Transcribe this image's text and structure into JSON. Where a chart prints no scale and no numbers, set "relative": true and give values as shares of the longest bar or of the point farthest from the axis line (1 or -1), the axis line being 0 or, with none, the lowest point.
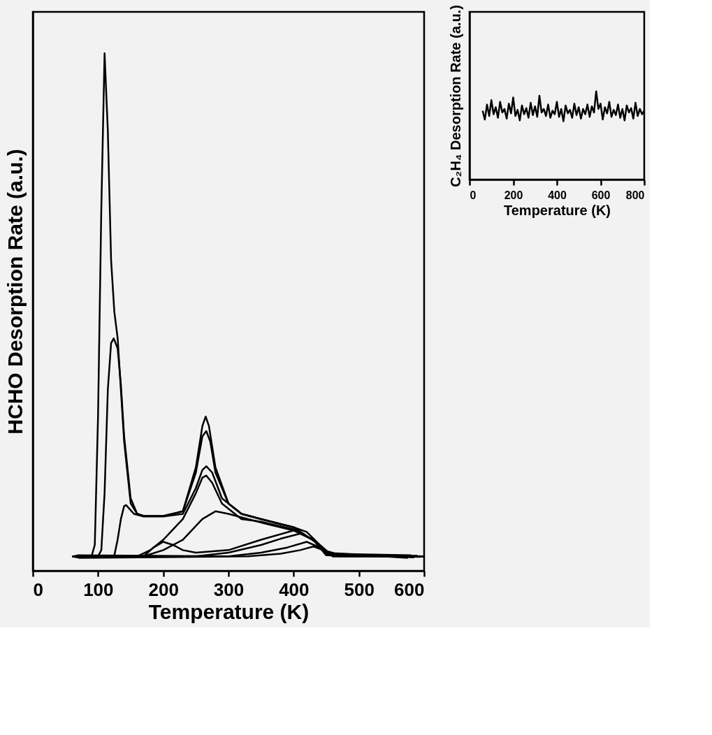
{
  "chart_data": [
    {
      "type": "line",
      "xlabel": "Temperature (K)",
      "ylabel": "HCHO Desorption Rate (a.u.)",
      "relative": true,
      "xlim": [
        0,
        600
      ],
      "xticks": [
        0,
        100,
        200,
        300,
        400,
        500,
        600
      ],
      "grid": false,
      "legend": false,
      "series": [
        {
          "color": "#000000",
          "x": [
            60,
            90,
            95,
            100,
            105,
            110,
            115,
            120,
            125,
            130,
            135,
            140,
            150,
            160,
            170,
            200,
            230,
            250,
            260,
            265,
            270,
            280,
            300,
            320,
            350,
            380,
            400,
            420,
            440,
            450,
            470,
            500,
            600
          ],
          "values": [
            0.028,
            0.028,
            0.05,
            0.3,
            0.7,
            1.0,
            0.85,
            0.6,
            0.5,
            0.45,
            0.35,
            0.25,
            0.13,
            0.11,
            0.106,
            0.106,
            0.115,
            0.2,
            0.28,
            0.298,
            0.28,
            0.2,
            0.13,
            0.11,
            0.1,
            0.09,
            0.084,
            0.075,
            0.05,
            0.035,
            0.028,
            0.028,
            0.028
          ]
        },
        {
          "color": "#000000",
          "x": [
            60,
            100,
            105,
            110,
            115,
            120,
            124,
            130,
            135,
            140,
            150,
            160,
            170,
            200,
            230,
            250,
            260,
            266,
            272,
            280,
            300,
            320,
            350,
            400,
            440,
            460,
            600
          ],
          "values": [
            0.028,
            0.028,
            0.04,
            0.15,
            0.35,
            0.44,
            0.449,
            0.43,
            0.36,
            0.26,
            0.14,
            0.11,
            0.106,
            0.106,
            0.115,
            0.19,
            0.26,
            0.27,
            0.25,
            0.19,
            0.13,
            0.11,
            0.1,
            0.084,
            0.05,
            0.028,
            0.028
          ]
        },
        {
          "color": "#000000",
          "x": [
            60,
            120,
            125,
            130,
            135,
            140,
            143,
            148,
            155,
            170,
            200,
            230,
            250,
            260,
            266,
            275,
            290,
            320,
            350,
            400,
            440,
            460,
            600
          ],
          "values": [
            0.028,
            0.028,
            0.03,
            0.06,
            0.1,
            0.125,
            0.127,
            0.12,
            0.11,
            0.105,
            0.105,
            0.11,
            0.16,
            0.195,
            0.202,
            0.19,
            0.14,
            0.11,
            0.1,
            0.084,
            0.05,
            0.028,
            0.028
          ]
        },
        {
          "color": "#000000",
          "x": [
            60,
            160,
            180,
            200,
            230,
            250,
            260,
            266,
            275,
            290,
            320,
            350,
            400,
            430,
            450,
            600
          ],
          "values": [
            0.028,
            0.028,
            0.04,
            0.06,
            0.1,
            0.15,
            0.18,
            0.184,
            0.17,
            0.13,
            0.1,
            0.095,
            0.08,
            0.06,
            0.03,
            0.028
          ]
        },
        {
          "color": "#000000",
          "x": [
            62,
            170,
            200,
            230,
            260,
            280,
            300,
            330,
            360,
            400,
            430,
            450,
            595
          ],
          "values": [
            0.027,
            0.028,
            0.04,
            0.06,
            0.1,
            0.115,
            0.11,
            0.1,
            0.09,
            0.078,
            0.06,
            0.03,
            0.027
          ]
        },
        {
          "color": "#000000",
          "x": [
            64,
            170,
            185,
            200,
            215,
            230,
            250,
            300,
            350,
            400,
            430,
            452,
            590
          ],
          "values": [
            0.029,
            0.028,
            0.045,
            0.056,
            0.05,
            0.04,
            0.035,
            0.04,
            0.06,
            0.078,
            0.06,
            0.031,
            0.029
          ]
        },
        {
          "color": "#000000",
          "x": [
            66,
            250,
            300,
            350,
            380,
            410,
            430,
            454,
            585
          ],
          "values": [
            0.026,
            0.028,
            0.035,
            0.05,
            0.062,
            0.072,
            0.06,
            0.032,
            0.026
          ]
        },
        {
          "color": "#000000",
          "x": [
            68,
            300,
            350,
            390,
            420,
            440,
            456,
            580
          ],
          "values": [
            0.03,
            0.028,
            0.035,
            0.045,
            0.056,
            0.045,
            0.033,
            0.03
          ]
        },
        {
          "color": "#000000",
          "x": [
            70,
            330,
            380,
            410,
            430,
            445,
            462,
            575
          ],
          "values": [
            0.025,
            0.028,
            0.033,
            0.04,
            0.047,
            0.04,
            0.034,
            0.025
          ]
        }
      ]
    },
    {
      "type": "line",
      "xlabel": "Temperature (K)",
      "ylabel": "C₂H₄ Desorption Rate (a.u.)",
      "relative": true,
      "xlim": [
        0,
        800
      ],
      "xticks": [
        0,
        200,
        400,
        600,
        800
      ],
      "grid": false,
      "legend": false,
      "series": [
        {
          "color": "#000000",
          "x": [
            60,
            70,
            80,
            90,
            100,
            110,
            120,
            130,
            140,
            150,
            160,
            170,
            180,
            190,
            200,
            210,
            220,
            230,
            240,
            250,
            260,
            270,
            280,
            290,
            300,
            310,
            320,
            330,
            340,
            350,
            360,
            370,
            380,
            390,
            400,
            410,
            420,
            430,
            440,
            450,
            460,
            470,
            480,
            490,
            500,
            510,
            520,
            530,
            540,
            550,
            560,
            570,
            580,
            590,
            600,
            610,
            620,
            630,
            640,
            650,
            660,
            670,
            680,
            690,
            700,
            710,
            720,
            730,
            740,
            750,
            760,
            770,
            780,
            790,
            800
          ],
          "values": [
            0.78,
            0.68,
            0.85,
            0.72,
            0.9,
            0.74,
            0.82,
            0.7,
            0.88,
            0.76,
            0.8,
            0.69,
            0.86,
            0.75,
            0.93,
            0.72,
            0.79,
            0.67,
            0.84,
            0.74,
            0.81,
            0.7,
            0.87,
            0.73,
            0.83,
            0.71,
            0.95,
            0.76,
            0.8,
            0.72,
            0.85,
            0.7,
            0.78,
            0.74,
            0.88,
            0.71,
            0.8,
            0.66,
            0.84,
            0.75,
            0.79,
            0.7,
            0.86,
            0.73,
            0.82,
            0.69,
            0.8,
            0.74,
            0.85,
            0.71,
            0.83,
            0.76,
            1.0,
            0.8,
            0.86,
            0.68,
            0.82,
            0.75,
            0.88,
            0.71,
            0.79,
            0.73,
            0.85,
            0.7,
            0.8,
            0.67,
            0.84,
            0.76,
            0.81,
            0.69,
            0.87,
            0.72,
            0.8,
            0.74,
            0.78
          ]
        }
      ]
    }
  ]
}
